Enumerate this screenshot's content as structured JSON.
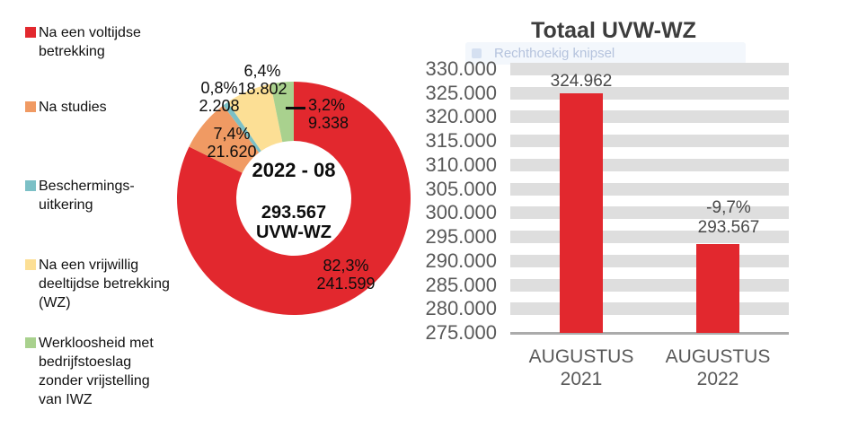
{
  "page": {
    "background": "#ffffff"
  },
  "legend": {
    "items": [
      {
        "label": "Na een voltijdse\nbetrekking",
        "color": "#e2282e"
      },
      {
        "label": "Na studies",
        "color": "#f09a63"
      },
      {
        "label": "Beschermings-\nuitkering",
        "color": "#7cc0c6"
      },
      {
        "label": "Na een vrijwillig\ndeeltijdse betrekking\n(WZ)",
        "color": "#fcdf95"
      },
      {
        "label": "Werkloosheid met\nbedrijfstoeslag\nzonder vrijstelling\nvan IWZ",
        "color": "#a9d18e"
      }
    ]
  },
  "chart_data": [
    {
      "type": "pie",
      "subtype": "donut",
      "direction": "clockwise",
      "start_angle": "top",
      "center_labels": {
        "period": "2022 - 08",
        "total": "293.567",
        "unit": "UVW-WZ"
      },
      "slices": [
        {
          "name": "Na een voltijdse betrekking",
          "value": 241599,
          "pct_label": "82,3%",
          "value_label": "241.599",
          "color": "#e2282e"
        },
        {
          "name": "Na studies",
          "value": 21620,
          "pct_label": "7,4%",
          "value_label": "21.620",
          "color": "#f09a63"
        },
        {
          "name": "Beschermingsuitkering",
          "value": 2208,
          "pct_label": "0,8%",
          "value_label": "2.208",
          "color": "#7cc0c6"
        },
        {
          "name": "Na een vrijwillig deeltijdse betrekking (WZ)",
          "value": 18802,
          "pct_label": "6,4%",
          "value_label": "18.802",
          "color": "#fcdf95"
        },
        {
          "name": "Werkloosheid met bedrijfstoeslag zonder vrijstelling van IWZ",
          "value": 9338,
          "pct_label": "3,2%",
          "value_label": "9.338",
          "color": "#a9d18e"
        }
      ],
      "total": 293567
    },
    {
      "type": "bar",
      "title": "Totaal UVW-WZ",
      "ylim": [
        275000,
        330000
      ],
      "ytick_values": [
        330000,
        325000,
        320000,
        315000,
        310000,
        305000,
        300000,
        295000,
        290000,
        285000,
        280000,
        275000
      ],
      "ytick_labels": [
        "330.000",
        "325.000",
        "320.000",
        "315.000",
        "310.000",
        "305.000",
        "300.000",
        "295.000",
        "290.000",
        "285.000",
        "280.000",
        "275.000"
      ],
      "grid": "striped-horizontal",
      "legend_position": "none",
      "bar_color": "#e2282e",
      "bars": [
        {
          "category": "AUGUSTUS\n2021",
          "value": 324962,
          "value_label": "324.962",
          "pct_label": ""
        },
        {
          "category": "AUGUSTUS\n2022",
          "value": 293567,
          "value_label": "293.567",
          "pct_label": "-9,7%"
        }
      ]
    }
  ],
  "watermark": {
    "label": "Rechthoekig knipsel"
  }
}
